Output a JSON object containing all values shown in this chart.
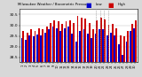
{
  "title": "Milwaukee Weather / Barometric Pressure",
  "subtitle": "Daily High/Low",
  "ylim": [
    28.3,
    30.75
  ],
  "yticks": [
    28.5,
    29.0,
    29.5,
    30.0,
    30.5
  ],
  "background_color": "#d8d8d8",
  "plot_bg": "#ffffff",
  "high_color": "#cc0000",
  "low_color": "#0000cc",
  "legend_high": "High",
  "legend_low": "Low",
  "dotted_indices": [
    19,
    20,
    21,
    22
  ],
  "days": [
    "1",
    "2",
    "3",
    "4",
    "5",
    "6",
    "7",
    "8",
    "9",
    "10",
    "11",
    "12",
    "13",
    "14",
    "15",
    "16",
    "17",
    "18",
    "19",
    "20",
    "21",
    "22",
    "23",
    "24",
    "25",
    "26",
    "27",
    "28",
    "29",
    "30"
  ],
  "highs": [
    29.75,
    29.65,
    29.82,
    29.72,
    29.87,
    29.82,
    29.92,
    30.12,
    30.22,
    30.17,
    30.07,
    30.17,
    30.22,
    30.12,
    30.42,
    30.37,
    30.32,
    30.12,
    29.82,
    30.22,
    30.37,
    30.27,
    30.02,
    30.07,
    29.87,
    29.52,
    29.47,
    29.72,
    30.07,
    30.22
  ],
  "lows": [
    29.42,
    29.32,
    29.52,
    29.47,
    29.57,
    29.52,
    29.67,
    29.82,
    29.92,
    29.87,
    29.72,
    29.87,
    29.92,
    29.62,
    29.22,
    29.72,
    29.82,
    29.62,
    29.42,
    29.62,
    29.82,
    29.82,
    29.52,
    29.67,
    29.52,
    29.12,
    28.62,
    29.22,
    29.72,
    29.87
  ]
}
